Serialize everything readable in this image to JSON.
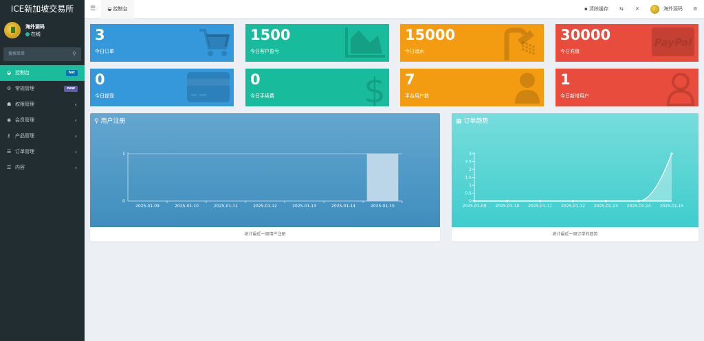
{
  "app": {
    "title": "ICE新加坡交易所"
  },
  "user": {
    "name": "海外源码",
    "status": "在线"
  },
  "sidebar": {
    "search_placeholder": "搜索菜单",
    "items": [
      {
        "label": "控制台",
        "icon": "dashboard-icon",
        "badge": "hot",
        "badge_color": "#0073b7"
      },
      {
        "label": "常规管理",
        "icon": "cogs-icon",
        "badge": "new",
        "badge_color": "#605ca8"
      },
      {
        "label": "权限管理",
        "icon": "group-icon"
      },
      {
        "label": "会员管理",
        "icon": "user-circle-icon"
      },
      {
        "label": "产品管理",
        "icon": "key-icon"
      },
      {
        "label": "订单管理",
        "icon": "list-icon"
      },
      {
        "label": "内容",
        "icon": "list-icon"
      }
    ]
  },
  "header": {
    "tab": "控制台",
    "clear_cache": "清除缓存",
    "username": "海外源码"
  },
  "cards": [
    {
      "value": "3",
      "label": "今日订单",
      "color": "#3498db",
      "icon": "shopping-cart-icon"
    },
    {
      "value": "1500",
      "label": "今日客户盈亏",
      "color": "#18bc9c",
      "icon": "area-chart-icon"
    },
    {
      "value": "15000",
      "label": "今日流水",
      "color": "#f39c12",
      "icon": "shower-icon"
    },
    {
      "value": "30000",
      "label": "今日充值",
      "color": "#e74c3c",
      "icon": "paypal-icon",
      "icon_text": "PayPal"
    },
    {
      "value": "0",
      "label": "今日提现",
      "color": "#3498db",
      "icon": "credit-card-icon"
    },
    {
      "value": "0",
      "label": "今日手续费",
      "color": "#18bc9c",
      "icon": "dollar-icon"
    },
    {
      "value": "7",
      "label": "平台用户数",
      "color": "#f39c12",
      "icon": "user-icon"
    },
    {
      "value": "1",
      "label": "今日新增用户",
      "color": "#e74c3c",
      "icon": "user-outline-icon"
    }
  ],
  "panels": [
    {
      "title": "用户注册",
      "footer": "统计最近一周用户注册"
    },
    {
      "title": "订单趋势",
      "footer": "统计最近一周订单的趋势"
    }
  ],
  "chart_data": [
    {
      "type": "bar",
      "categories": [
        "2025-01-09",
        "2025-01-10",
        "2025-01-11",
        "2025-01-12",
        "2025-01-13",
        "2025-01-14",
        "2025-01-15"
      ],
      "values": [
        0,
        0,
        0,
        0,
        0,
        0,
        1
      ],
      "ylim": [
        0,
        1
      ],
      "yticks": [
        "0",
        "1"
      ]
    },
    {
      "type": "area",
      "categories": [
        "2025-01-09",
        "2025-01-10",
        "2025-01-11",
        "2025-01-12",
        "2025-01-13",
        "2025-01-14",
        "2025-01-15"
      ],
      "values": [
        0,
        0,
        0,
        0,
        0,
        0,
        3
      ],
      "ylim": [
        0,
        3
      ],
      "yticks": [
        "0",
        "0.5",
        "1",
        "1.5",
        "2",
        "2.5",
        "3"
      ]
    }
  ]
}
